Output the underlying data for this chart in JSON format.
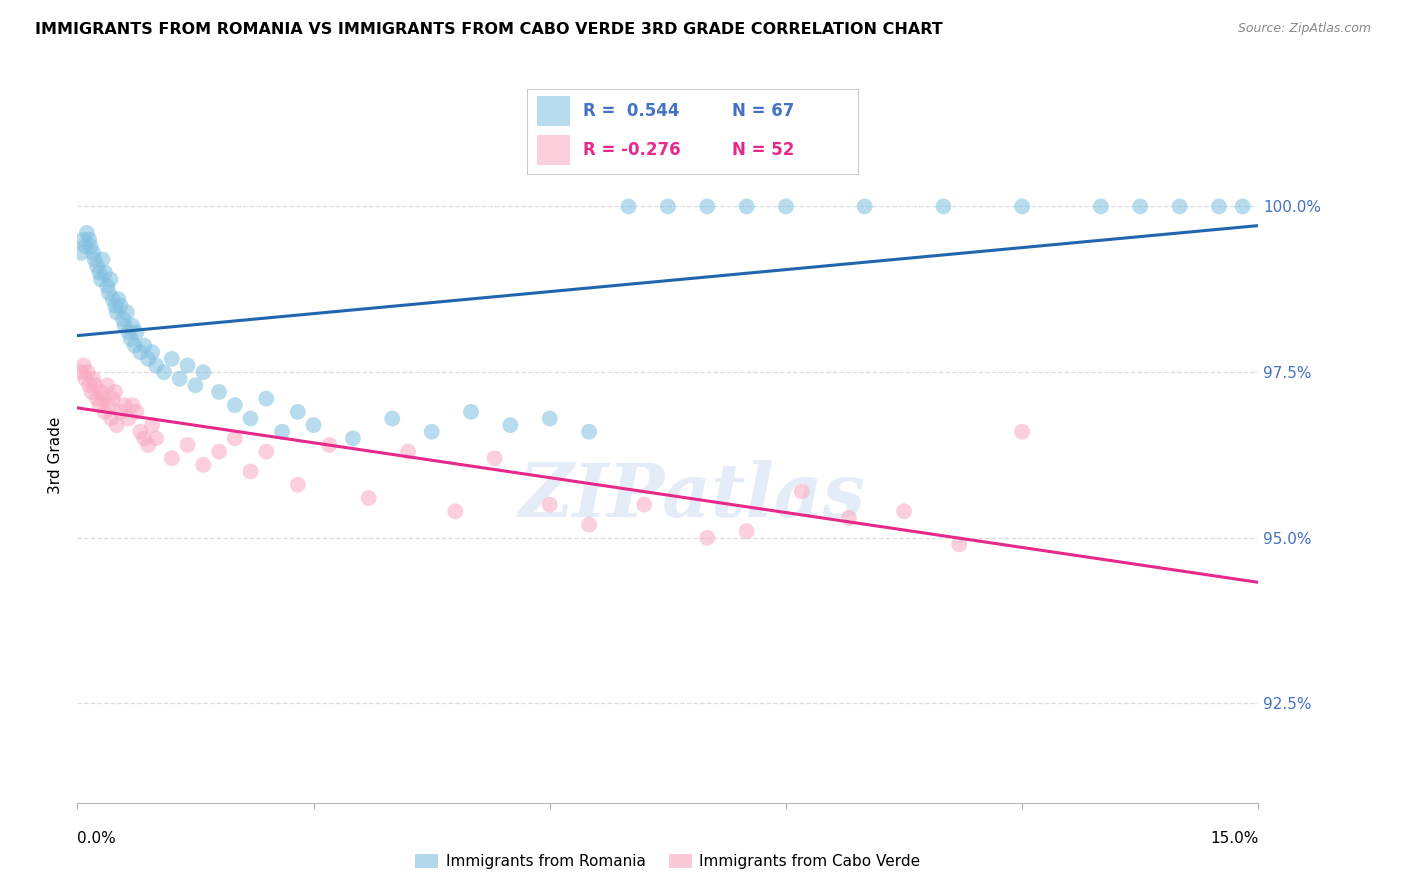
{
  "title": "IMMIGRANTS FROM ROMANIA VS IMMIGRANTS FROM CABO VERDE 3RD GRADE CORRELATION CHART",
  "source": "Source: ZipAtlas.com",
  "ylabel": "3rd Grade",
  "ytick_values": [
    92.5,
    95.0,
    97.5,
    100.0
  ],
  "xlim": [
    0.0,
    15.0
  ],
  "ylim": [
    91.0,
    101.5
  ],
  "legend_romania": "Immigrants from Romania",
  "legend_caboverde": "Immigrants from Cabo Verde",
  "R_romania": "0.544",
  "N_romania": "67",
  "R_caboverde": "-0.276",
  "N_caboverde": "52",
  "color_romania": "#7fbfdf",
  "color_caboverde": "#f9a8c0",
  "color_trend_romania": "#2166ac",
  "color_trend_caboverde": "#e7298a",
  "romania_x": [
    0.05,
    0.08,
    0.1,
    0.12,
    0.15,
    0.17,
    0.2,
    0.22,
    0.25,
    0.28,
    0.3,
    0.32,
    0.35,
    0.38,
    0.4,
    0.42,
    0.45,
    0.48,
    0.5,
    0.52,
    0.55,
    0.58,
    0.6,
    0.63,
    0.65,
    0.68,
    0.7,
    0.73,
    0.75,
    0.8,
    0.85,
    0.9,
    0.95,
    1.0,
    1.1,
    1.2,
    1.3,
    1.4,
    1.5,
    1.6,
    1.8,
    2.0,
    2.2,
    2.4,
    2.6,
    2.8,
    3.0,
    3.5,
    4.0,
    4.5,
    5.0,
    5.5,
    6.0,
    6.5,
    7.0,
    7.5,
    8.0,
    8.5,
    9.0,
    10.0,
    11.0,
    12.0,
    13.0,
    13.5,
    14.0,
    14.5,
    14.8
  ],
  "romania_y": [
    99.3,
    99.5,
    99.4,
    99.6,
    99.5,
    99.4,
    99.3,
    99.2,
    99.1,
    99.0,
    98.9,
    99.2,
    99.0,
    98.8,
    98.7,
    98.9,
    98.6,
    98.5,
    98.4,
    98.6,
    98.5,
    98.3,
    98.2,
    98.4,
    98.1,
    98.0,
    98.2,
    97.9,
    98.1,
    97.8,
    97.9,
    97.7,
    97.8,
    97.6,
    97.5,
    97.7,
    97.4,
    97.6,
    97.3,
    97.5,
    97.2,
    97.0,
    96.8,
    97.1,
    96.6,
    96.9,
    96.7,
    96.5,
    96.8,
    96.6,
    96.9,
    96.7,
    96.8,
    96.6,
    100.0,
    100.0,
    100.0,
    100.0,
    100.0,
    100.0,
    100.0,
    100.0,
    100.0,
    100.0,
    100.0,
    100.0,
    100.0
  ],
  "caboverde_x": [
    0.05,
    0.08,
    0.1,
    0.13,
    0.15,
    0.18,
    0.2,
    0.23,
    0.25,
    0.28,
    0.3,
    0.33,
    0.35,
    0.38,
    0.4,
    0.43,
    0.45,
    0.48,
    0.5,
    0.55,
    0.6,
    0.65,
    0.7,
    0.75,
    0.8,
    0.85,
    0.9,
    0.95,
    1.0,
    1.2,
    1.4,
    1.6,
    1.8,
    2.0,
    2.2,
    2.4,
    2.8,
    3.2,
    3.7,
    4.2,
    4.8,
    5.3,
    6.0,
    6.5,
    7.2,
    8.0,
    8.5,
    9.2,
    9.8,
    10.5,
    11.2,
    12.0
  ],
  "caboverde_y": [
    97.5,
    97.6,
    97.4,
    97.5,
    97.3,
    97.2,
    97.4,
    97.3,
    97.1,
    97.0,
    97.2,
    97.1,
    96.9,
    97.3,
    97.0,
    96.8,
    97.1,
    97.2,
    96.7,
    96.9,
    97.0,
    96.8,
    97.0,
    96.9,
    96.6,
    96.5,
    96.4,
    96.7,
    96.5,
    96.2,
    96.4,
    96.1,
    96.3,
    96.5,
    96.0,
    96.3,
    95.8,
    96.4,
    95.6,
    96.3,
    95.4,
    96.2,
    95.5,
    95.2,
    95.5,
    95.0,
    95.1,
    95.7,
    95.3,
    95.4,
    94.9,
    96.6
  ],
  "watermark_text": "ZIPatlas",
  "background_color": "#ffffff",
  "grid_color": "#dddddd"
}
